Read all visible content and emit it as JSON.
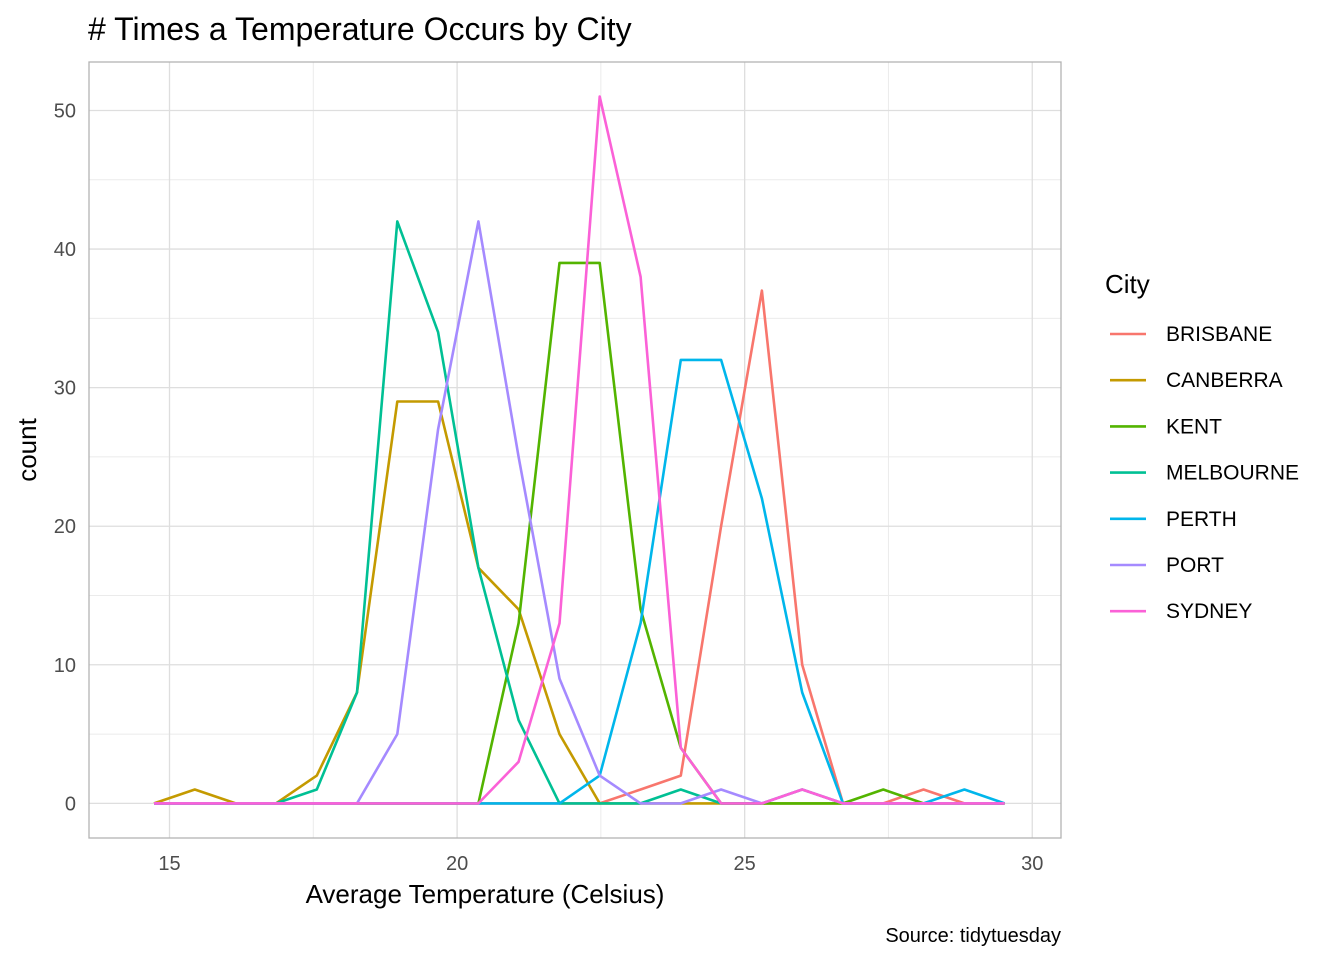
{
  "chart_data": {
    "type": "line",
    "title": "# Times a Temperature Occurs by City",
    "xlabel": "Average Temperature (Celsius)",
    "ylabel": "count",
    "caption": "Source: tidytuesday",
    "legend_title": "City",
    "legend_position": "right",
    "grid": true,
    "xlim": [
      13.6,
      30.5
    ],
    "ylim": [
      -2.5,
      53.5
    ],
    "x_ticks": [
      15,
      20,
      25,
      30
    ],
    "y_ticks": [
      0,
      10,
      20,
      30,
      40,
      50
    ],
    "x": [
      14.73,
      15.44,
      16.15,
      16.85,
      17.56,
      18.26,
      18.96,
      19.67,
      20.37,
      21.07,
      21.78,
      22.48,
      23.19,
      23.89,
      24.59,
      25.3,
      26.0,
      26.71,
      27.41,
      28.11,
      28.82,
      29.52
    ],
    "series": [
      {
        "name": "BRISBANE",
        "color": "#F8766D",
        "values": [
          0,
          0,
          0,
          0,
          0,
          0,
          0,
          0,
          0,
          0,
          0,
          0,
          1,
          2,
          20,
          37,
          10,
          0,
          0,
          1,
          0,
          0
        ]
      },
      {
        "name": "CANBERRA",
        "color": "#C49A00",
        "values": [
          0,
          1,
          0,
          0,
          2,
          8,
          29,
          29,
          17,
          14,
          5,
          0,
          0,
          0,
          0,
          0,
          0,
          0,
          0,
          0,
          0,
          0
        ]
      },
      {
        "name": "KENT",
        "color": "#53B400",
        "values": [
          0,
          0,
          0,
          0,
          0,
          0,
          0,
          0,
          0,
          13,
          39,
          39,
          14,
          4,
          0,
          0,
          0,
          0,
          1,
          0,
          0,
          0
        ]
      },
      {
        "name": "MELBOURNE",
        "color": "#00C094",
        "values": [
          0,
          0,
          0,
          0,
          1,
          8,
          42,
          34,
          17,
          6,
          0,
          0,
          0,
          1,
          0,
          0,
          1,
          0,
          0,
          0,
          0,
          0
        ]
      },
      {
        "name": "PERTH",
        "color": "#00B6EB",
        "values": [
          0,
          0,
          0,
          0,
          0,
          0,
          0,
          0,
          0,
          0,
          0,
          2,
          13,
          32,
          32,
          22,
          8,
          0,
          0,
          0,
          1,
          0
        ]
      },
      {
        "name": "PORT",
        "color": "#A58AFF",
        "values": [
          0,
          0,
          0,
          0,
          0,
          0,
          5,
          27,
          42,
          25,
          9,
          2,
          0,
          0,
          1,
          0,
          1,
          0,
          0,
          0,
          0,
          0
        ]
      },
      {
        "name": "SYDNEY",
        "color": "#FB61D7",
        "values": [
          0,
          0,
          0,
          0,
          0,
          0,
          0,
          0,
          0,
          3,
          13,
          51,
          38,
          4,
          0,
          0,
          1,
          0,
          0,
          0,
          0,
          0
        ]
      }
    ]
  }
}
